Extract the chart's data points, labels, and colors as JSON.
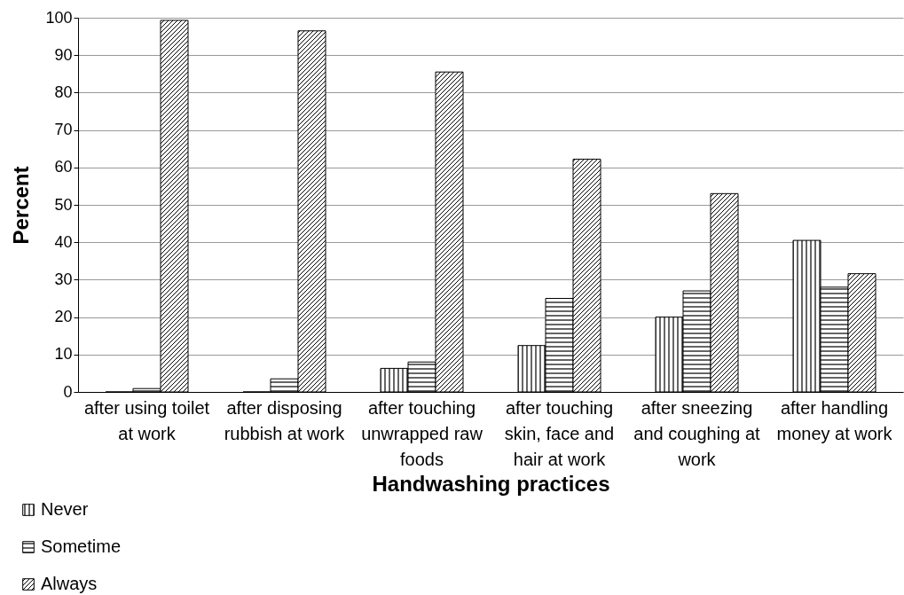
{
  "chart_data": {
    "type": "bar",
    "xlabel": "Handwashing practices",
    "ylabel": "Percent",
    "categories": [
      "after using toilet at work",
      "after disposing rubbish at work",
      "after touching unwrapped raw foods",
      "after touching skin, face and hair at work",
      "after sneezing and coughing at work",
      "after handling money at work"
    ],
    "series": [
      {
        "name": "Never",
        "color": "#000000",
        "values": [
          0,
          0,
          6.3,
          12.4,
          20,
          40.5
        ]
      },
      {
        "name": "Sometime",
        "color": "#000000",
        "values": [
          0.9,
          3.5,
          8,
          25,
          27,
          28
        ]
      },
      {
        "name": "Always",
        "color": "#000000",
        "values": [
          99.3,
          96.5,
          85.5,
          62.2,
          53,
          31.6
        ]
      }
    ],
    "ylim": [
      0,
      100
    ],
    "yticks": [
      0,
      10,
      20,
      30,
      40,
      50,
      60,
      70,
      80,
      90,
      100
    ],
    "grid": "y",
    "legend": "bottom left"
  }
}
